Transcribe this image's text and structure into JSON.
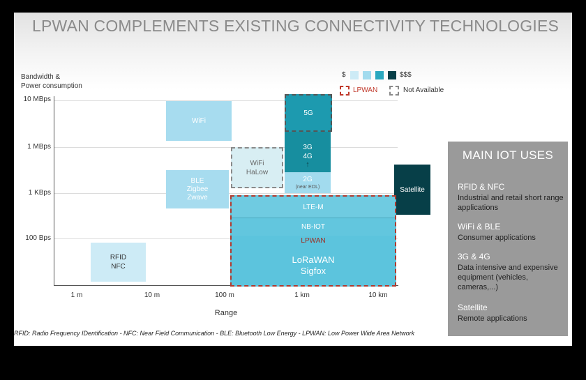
{
  "title": "LPWAN COMPLEMENTS EXISTING CONNECTIVITY TECHNOLOGIES",
  "y_axis_title": [
    "Bandwidth &",
    "Power consumption"
  ],
  "x_axis_title": "Range",
  "y_ticks": [
    "10 MBps",
    "1 MBps",
    "1 KBps",
    "100 Bps"
  ],
  "x_ticks": [
    "1 m",
    "10 m",
    "100 m",
    "1 km",
    "10 km"
  ],
  "legend": {
    "cost_low": "$",
    "cost_high": "$$$",
    "lpwan": "LPWAN",
    "not_available": "Not Available",
    "colors": [
      "#cdebf6",
      "#a2dbee",
      "#2aa8bf",
      "#073f48"
    ]
  },
  "boxes": {
    "wifi": [
      "WiFi"
    ],
    "wifi_halow": [
      "WiFi",
      "HaLow"
    ],
    "ble": [
      "BLE",
      "Zigbee",
      "Zwave"
    ],
    "rfid": [
      "RFID",
      "NFC"
    ],
    "five_g": [
      "5G"
    ],
    "three_four_g": [
      "3G",
      "4G"
    ],
    "arrow": "↑",
    "two_g": [
      "2G"
    ],
    "two_g_note": "(near EOL)",
    "satellite": [
      "Satellite"
    ],
    "lte_m": "LTE-M",
    "nb_iot": "NB-IOT",
    "lpwan_label": "LPWAN",
    "lorawan": [
      "LoRaWAN",
      "Sigfox"
    ]
  },
  "main_uses": {
    "title": "MAIN IOT USES",
    "items": [
      {
        "heading": "RFID & NFC",
        "desc": "Industrial and retail short range applications"
      },
      {
        "heading": "WiFi & BLE",
        "desc": "Consumer applications"
      },
      {
        "heading": "3G & 4G",
        "desc": "Data intensive and expensive equipment (vehicles, cameras,...)"
      },
      {
        "heading": "Satellite",
        "desc": "Remote applications"
      }
    ]
  },
  "footnote": "RFID: Radio Frequency IDentification - NFC: Near Field Communication - BLE: Bluetooth Low Energy - LPWAN: Low Power Wide Area Network"
}
